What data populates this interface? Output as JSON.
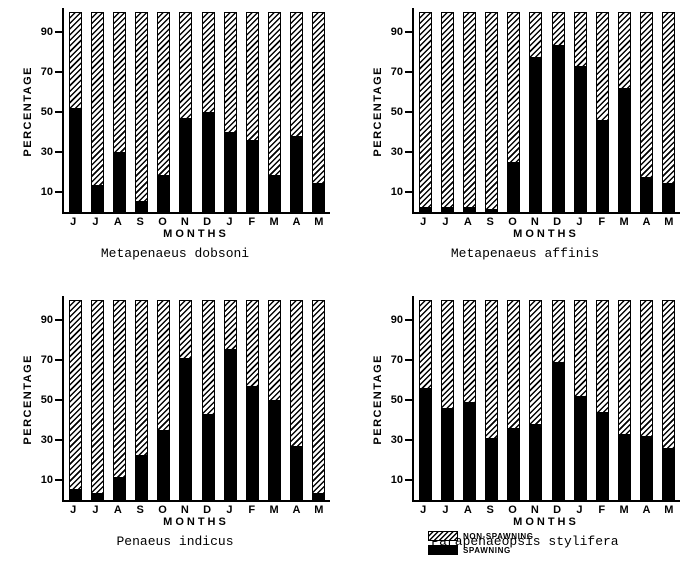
{
  "legend": {
    "non_spawning": "NON-SPAWNING",
    "spawning": "SPAWNING"
  },
  "chart_data": [
    {
      "type": "bar",
      "stacked": true,
      "title": "Metapenaeus dobsoni",
      "xlabel": "MONTHS",
      "ylabel": "PERCENTAGE",
      "ylim": [
        0,
        100
      ],
      "yticks": [
        10,
        30,
        50,
        70,
        90
      ],
      "categories": [
        "J",
        "J",
        "A",
        "S",
        "O",
        "N",
        "D",
        "J",
        "F",
        "M",
        "A",
        "M"
      ],
      "series": [
        {
          "name": "SPAWNING",
          "values": [
            52,
            13,
            30,
            5,
            18,
            47,
            50,
            40,
            36,
            18,
            38,
            14
          ]
        },
        {
          "name": "NON-SPAWNING",
          "values": [
            48,
            87,
            70,
            95,
            82,
            53,
            50,
            60,
            64,
            82,
            62,
            86
          ]
        }
      ]
    },
    {
      "type": "bar",
      "stacked": true,
      "title": "Metapenaeus affinis",
      "xlabel": "MONTHS",
      "ylabel": "PERCENTAGE",
      "ylim": [
        0,
        100
      ],
      "yticks": [
        10,
        30,
        50,
        70,
        90
      ],
      "categories": [
        "J",
        "J",
        "A",
        "S",
        "O",
        "N",
        "D",
        "J",
        "F",
        "M",
        "A",
        "M"
      ],
      "series": [
        {
          "name": "SPAWNING",
          "values": [
            2,
            2,
            2,
            1,
            25,
            78,
            84,
            73,
            46,
            62,
            17,
            14
          ]
        },
        {
          "name": "NON-SPAWNING",
          "values": [
            98,
            98,
            98,
            99,
            75,
            22,
            16,
            27,
            54,
            38,
            83,
            86
          ]
        }
      ]
    },
    {
      "type": "bar",
      "stacked": true,
      "title": "Penaeus indicus",
      "xlabel": "MONTHS",
      "ylabel": "PERCENTAGE",
      "ylim": [
        0,
        100
      ],
      "yticks": [
        10,
        30,
        50,
        70,
        90
      ],
      "categories": [
        "J",
        "J",
        "A",
        "S",
        "O",
        "N",
        "D",
        "J",
        "F",
        "M",
        "A",
        "M"
      ],
      "series": [
        {
          "name": "SPAWNING",
          "values": [
            5,
            3,
            11,
            22,
            35,
            71,
            43,
            76,
            57,
            50,
            27,
            3
          ]
        },
        {
          "name": "NON-SPAWNING",
          "values": [
            95,
            97,
            89,
            78,
            65,
            29,
            57,
            24,
            43,
            50,
            73,
            97
          ]
        }
      ]
    },
    {
      "type": "bar",
      "stacked": true,
      "title": "Parapenaeopsis stylifera",
      "xlabel": "MONTHS",
      "ylabel": "PERCENTAGE",
      "ylim": [
        0,
        100
      ],
      "yticks": [
        10,
        30,
        50,
        70,
        90
      ],
      "categories": [
        "J",
        "J",
        "A",
        "S",
        "O",
        "N",
        "D",
        "J",
        "F",
        "M",
        "A",
        "M"
      ],
      "series": [
        {
          "name": "SPAWNING",
          "values": [
            56,
            46,
            49,
            31,
            36,
            38,
            69,
            52,
            44,
            33,
            32,
            26
          ]
        },
        {
          "name": "NON-SPAWNING",
          "values": [
            44,
            54,
            51,
            69,
            64,
            62,
            31,
            48,
            56,
            67,
            68,
            74
          ]
        }
      ]
    }
  ]
}
